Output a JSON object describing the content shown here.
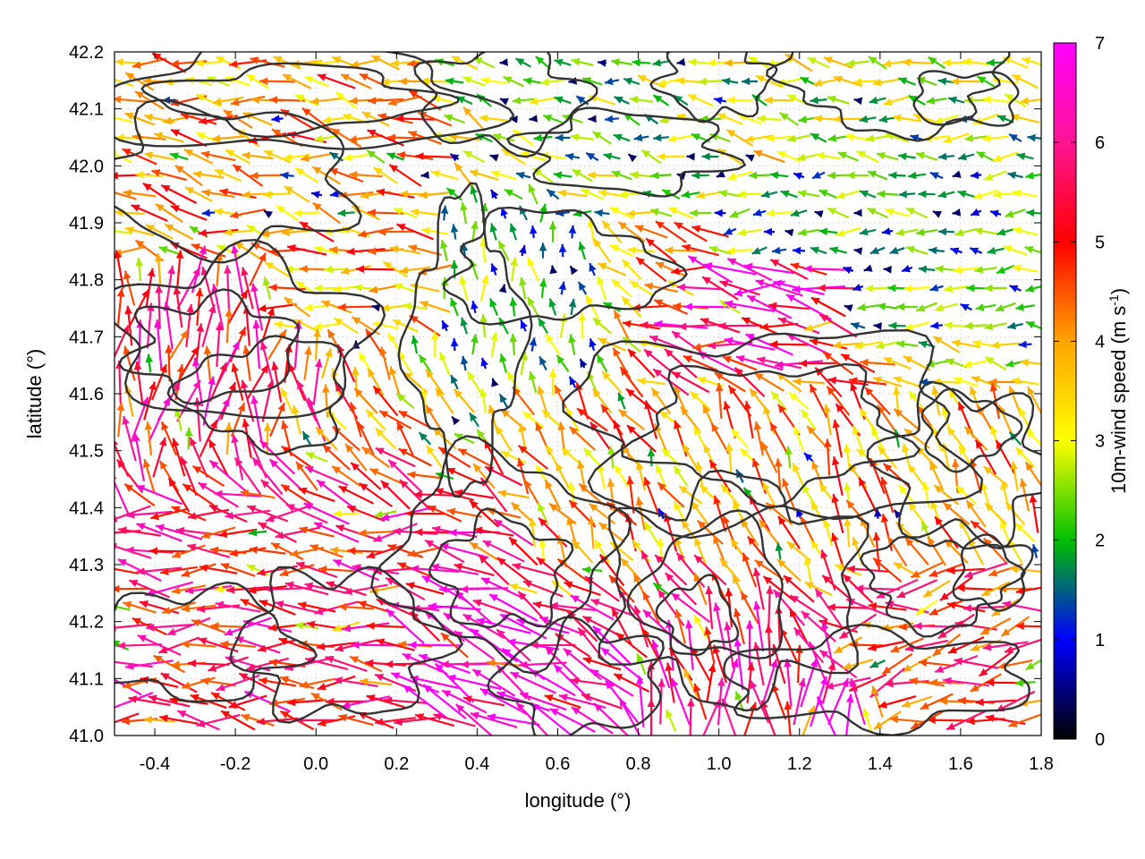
{
  "chart_data": {
    "type": "vector-field",
    "xlabel": "longitude (°)",
    "ylabel": "latitude (°)",
    "xlim": [
      -0.5,
      1.8
    ],
    "ylim": [
      41.0,
      42.2
    ],
    "x_ticks": [
      "-0.4",
      "-0.2",
      "0.0",
      "0.2",
      "0.4",
      "0.6",
      "0.8",
      "1.0",
      "1.2",
      "1.4",
      "1.6",
      "1.8"
    ],
    "y_ticks": [
      "41.0",
      "41.1",
      "41.2",
      "41.3",
      "41.4",
      "41.5",
      "41.6",
      "41.7",
      "41.8",
      "41.9",
      "42.0",
      "42.1",
      "42.2"
    ],
    "colorbar": {
      "label_main": "10m-wind speed (m s",
      "label_exp": "-1",
      "label_close": ")",
      "range": [
        0,
        7
      ],
      "ticks": [
        "0",
        "1",
        "2",
        "3",
        "4",
        "5",
        "6",
        "7"
      ],
      "palette": [
        "#000000",
        "#0000ff",
        "#00c000",
        "#ffff00",
        "#ffa500",
        "#ff0000",
        "#ff00ff"
      ]
    },
    "grid": "dotted",
    "contours": "terrain elevation (black lines)",
    "vector_regions": [
      {
        "lon_range": [
          -0.5,
          0.3
        ],
        "lat_range": [
          41.7,
          42.2
        ],
        "u": -2.8,
        "v": 0.6,
        "speed": 4.0
      },
      {
        "lon_range": [
          -0.5,
          -0.1
        ],
        "lat_range": [
          41.55,
          41.85
        ],
        "u": 0.6,
        "v": 3.8,
        "speed": 5.5
      },
      {
        "lon_range": [
          -0.5,
          0.3
        ],
        "lat_range": [
          41.0,
          41.4
        ],
        "u": -4.8,
        "v": 0.3,
        "speed": 5.5
      },
      {
        "lon_range": [
          0.2,
          0.5
        ],
        "lat_range": [
          41.05,
          41.25
        ],
        "u": -5.0,
        "v": 2.0,
        "speed": 6.5
      },
      {
        "lon_range": [
          0.3,
          0.7
        ],
        "lat_range": [
          41.6,
          41.95
        ],
        "u": -0.3,
        "v": 1.5,
        "speed": 2.0
      },
      {
        "lon_range": [
          0.6,
          1.0
        ],
        "lat_range": [
          41.9,
          42.2
        ],
        "u": -1.8,
        "v": 0.4,
        "speed": 2.5
      },
      {
        "lon_range": [
          1.0,
          1.8
        ],
        "lat_range": [
          41.7,
          42.0
        ],
        "u": -2.0,
        "v": 0.0,
        "speed": 2.0
      },
      {
        "lon_range": [
          0.9,
          1.3
        ],
        "lat_range": [
          41.7,
          41.85
        ],
        "u": -4.5,
        "v": 0.6,
        "speed": 6.0
      },
      {
        "lon_range": [
          0.5,
          1.8
        ],
        "lat_range": [
          41.3,
          41.6
        ],
        "u": -1.5,
        "v": 2.8,
        "speed": 4.0
      },
      {
        "lon_range": [
          1.3,
          1.8
        ],
        "lat_range": [
          41.0,
          41.2
        ],
        "u": -4.5,
        "v": -1.2,
        "speed": 5.0
      },
      {
        "lon_range": [
          0.9,
          1.4
        ],
        "lat_range": [
          41.0,
          41.08
        ],
        "u": 0.0,
        "v": 3.0,
        "speed": 6.0
      }
    ]
  }
}
